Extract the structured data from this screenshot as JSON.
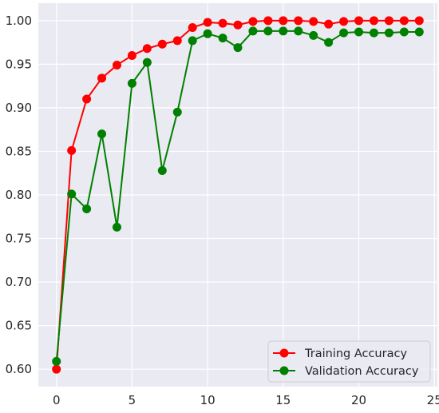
{
  "chart_data": {
    "type": "line",
    "title": "",
    "xlabel": "",
    "ylabel": "",
    "xlim": [
      -1.2,
      25.2
    ],
    "ylim": [
      0.58,
      1.02
    ],
    "x_ticks": [
      0,
      5,
      10,
      15,
      20,
      25
    ],
    "y_ticks": [
      0.6,
      0.65,
      0.7,
      0.75,
      0.8,
      0.85,
      0.9,
      0.95,
      1.0
    ],
    "x_tick_labels": [
      "0",
      "5",
      "10",
      "15",
      "20",
      "25"
    ],
    "y_tick_labels": [
      "0.60",
      "0.65",
      "0.70",
      "0.75",
      "0.80",
      "0.85",
      "0.90",
      "0.95",
      "1.00"
    ],
    "grid": true,
    "legend_position": "lower-right",
    "x": [
      0,
      1,
      2,
      3,
      4,
      5,
      6,
      7,
      8,
      9,
      10,
      11,
      12,
      13,
      14,
      15,
      16,
      17,
      18,
      19,
      20,
      21,
      22,
      23,
      24
    ],
    "series": [
      {
        "name": "Training Accuracy",
        "color": "#ff0000",
        "values": [
          0.6,
          0.851,
          0.91,
          0.934,
          0.949,
          0.96,
          0.968,
          0.973,
          0.977,
          0.992,
          0.998,
          0.997,
          0.995,
          0.999,
          1.0,
          1.0,
          1.0,
          0.999,
          0.996,
          0.999,
          1.0,
          1.0,
          1.0,
          1.0,
          1.0
        ]
      },
      {
        "name": "Validation Accuracy",
        "color": "#008000",
        "values": [
          0.609,
          0.801,
          0.784,
          0.87,
          0.763,
          0.928,
          0.952,
          0.828,
          0.895,
          0.977,
          0.985,
          0.98,
          0.969,
          0.988,
          0.988,
          0.988,
          0.988,
          0.983,
          0.975,
          0.986,
          0.987,
          0.986,
          0.986,
          0.987,
          0.987
        ]
      }
    ]
  },
  "colors": {
    "plot_background": "#eaeaf2",
    "grid": "#ffffff",
    "training": "#ff0000",
    "validation": "#008000",
    "legend_border": "#cccccc"
  }
}
